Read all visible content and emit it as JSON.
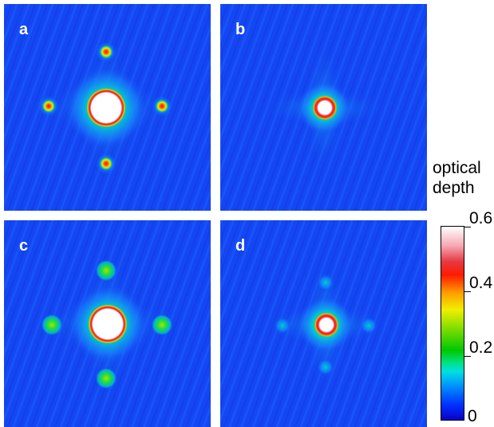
{
  "panels": [
    {
      "id": "a",
      "label": "a"
    },
    {
      "id": "b",
      "label": "b"
    },
    {
      "id": "c",
      "label": "c"
    },
    {
      "id": "d",
      "label": "d"
    }
  ],
  "colorbar": {
    "title_line1": "optical",
    "title_line2": "depth",
    "ticks": [
      "0.6",
      "0.4",
      "0.2",
      "0"
    ],
    "range": [
      0,
      0.6
    ]
  }
}
